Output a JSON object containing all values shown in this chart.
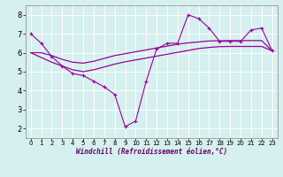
{
  "xlabel": "Windchill (Refroidissement éolien,°C)",
  "x": [
    0,
    1,
    2,
    3,
    4,
    5,
    6,
    7,
    8,
    9,
    10,
    11,
    12,
    13,
    14,
    15,
    16,
    17,
    18,
    19,
    20,
    21,
    22,
    23
  ],
  "line1": [
    7.0,
    6.5,
    5.8,
    5.3,
    4.9,
    4.8,
    4.5,
    4.2,
    3.8,
    2.1,
    2.4,
    4.5,
    6.2,
    6.5,
    6.5,
    8.0,
    7.8,
    7.3,
    6.6,
    6.6,
    6.6,
    7.2,
    7.3,
    6.1
  ],
  "line2": [
    6.0,
    6.0,
    5.85,
    5.65,
    5.5,
    5.45,
    5.55,
    5.7,
    5.85,
    5.95,
    6.05,
    6.15,
    6.25,
    6.35,
    6.45,
    6.52,
    6.57,
    6.62,
    6.63,
    6.64,
    6.64,
    6.64,
    6.64,
    6.1
  ],
  "line3": [
    6.0,
    5.75,
    5.5,
    5.3,
    5.1,
    5.0,
    5.1,
    5.25,
    5.4,
    5.52,
    5.62,
    5.72,
    5.82,
    5.92,
    6.02,
    6.12,
    6.22,
    6.28,
    6.32,
    6.33,
    6.33,
    6.33,
    6.33,
    6.1
  ],
  "line_color": "#990099",
  "bg_color": "#d5f0ee",
  "grid_color": "#ffffff",
  "ylim": [
    1.5,
    8.5
  ],
  "xlim": [
    -0.5,
    23.5
  ],
  "yticks": [
    2,
    3,
    4,
    5,
    6,
    7,
    8
  ],
  "xticks": [
    0,
    1,
    2,
    3,
    4,
    5,
    6,
    7,
    8,
    9,
    10,
    11,
    12,
    13,
    14,
    15,
    16,
    17,
    18,
    19,
    20,
    21,
    22,
    23
  ]
}
